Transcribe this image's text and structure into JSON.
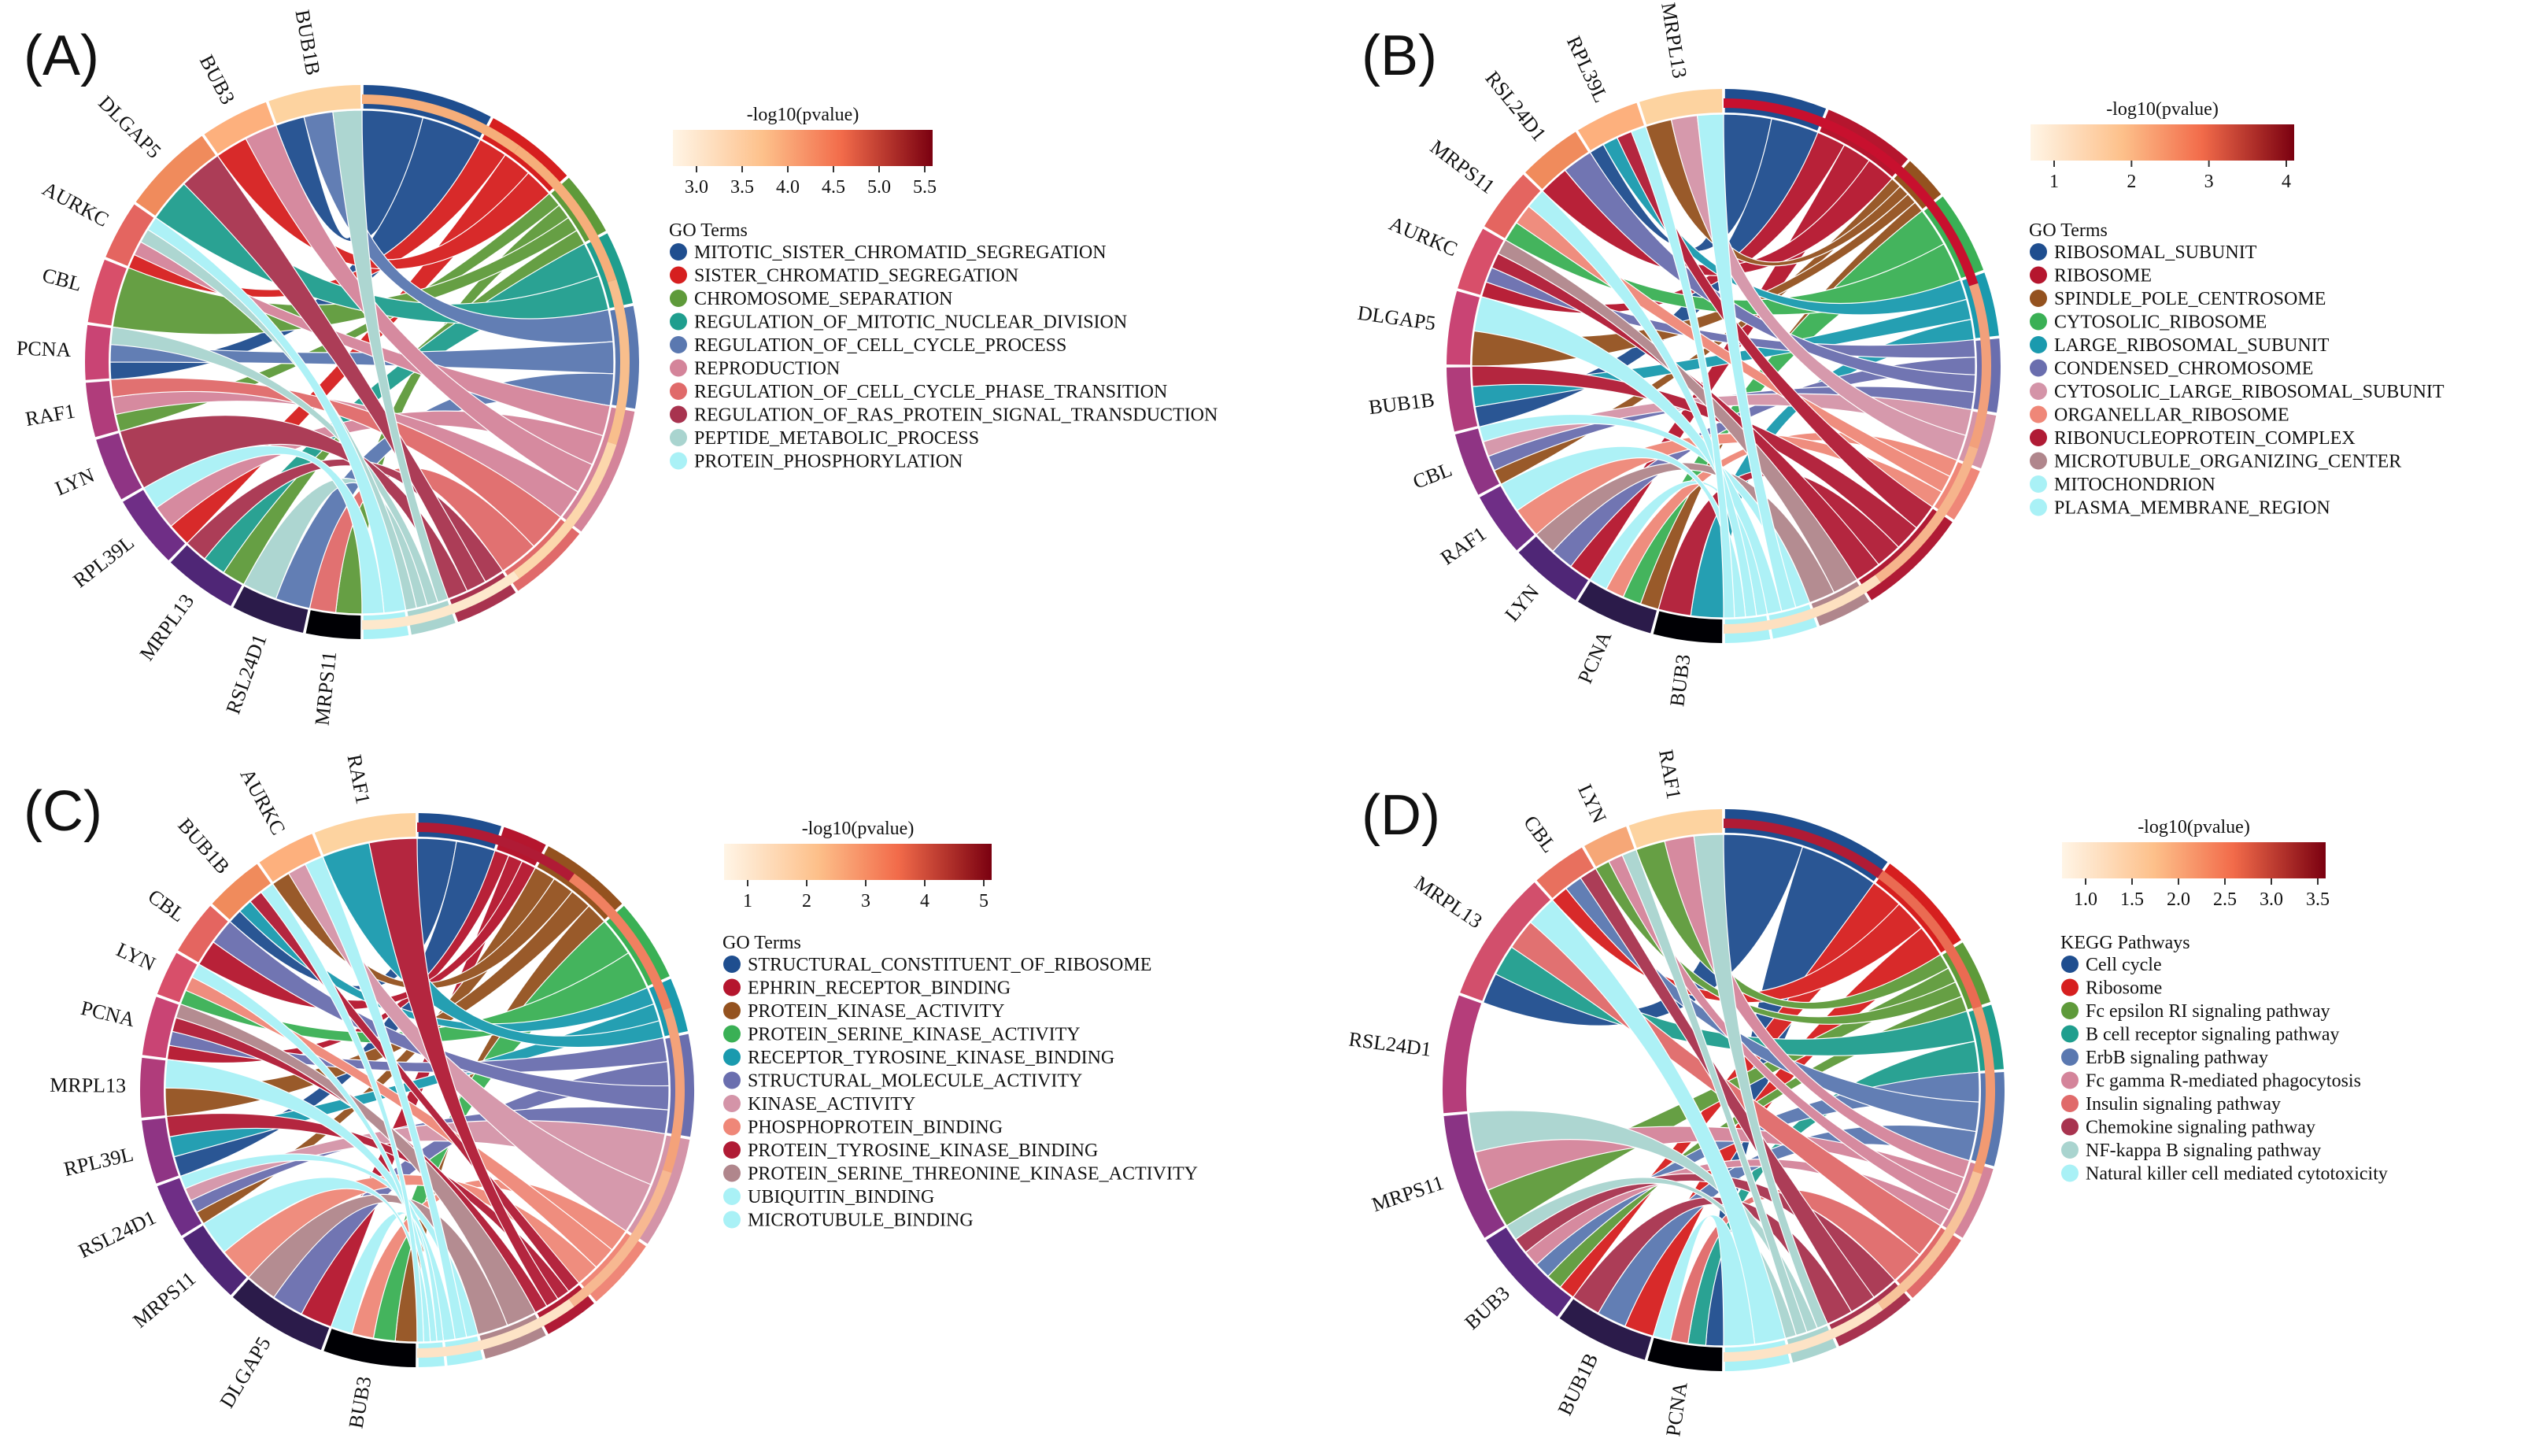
{
  "panels": [
    {
      "label": "(A)",
      "colorbar": {
        "title": "-log10(pvalue)",
        "ticks": [
          "3.0",
          "3.5",
          "4.0",
          "4.5",
          "5.0",
          "5.5"
        ]
      },
      "legend_title": "GO Terms",
      "genes": [
        "BUB1B",
        "BUB3",
        "DLGAP5",
        "AURKC",
        "CBL",
        "PCNA",
        "RAF1",
        "LYN",
        "RPL39L",
        "MRPL13",
        "RSL24D1",
        "MRPS11"
      ],
      "gene_colors": [
        "#fdd3a0",
        "#fdb07d",
        "#f08b5c",
        "#e46560",
        "#d84f6a",
        "#c94474",
        "#b03c7b",
        "#8f3484",
        "#6f2e86",
        "#4f2676",
        "#2b1b4a",
        "#000004"
      ],
      "ring": [
        "#f6ae7a",
        "#f6ae7a",
        "#f8be8c",
        "#fcd7ac",
        "#fde8cc"
      ],
      "terms": [
        {
          "name": "MITOTIC_SISTER_CHROMATID_SEGREGATION",
          "color": "#1f4e8f"
        },
        {
          "name": "SISTER_CHROMATID_SEGREGATION",
          "color": "#d61f1f"
        },
        {
          "name": "CHROMOSOME_SEPARATION",
          "color": "#5e9a3a"
        },
        {
          "name": "REGULATION_OF_MITOTIC_NUCLEAR_DIVISION",
          "color": "#1f9e8e"
        },
        {
          "name": "REGULATION_OF_CELL_CYCLE_PROCESS",
          "color": "#5a78b0"
        },
        {
          "name": "REPRODUCTION",
          "color": "#d4849a"
        },
        {
          "name": "REGULATION_OF_CELL_CYCLE_PHASE_TRANSITION",
          "color": "#e06a6a"
        },
        {
          "name": "REGULATION_OF_RAS_PROTEIN_SIGNAL_TRANSDUCTION",
          "color": "#a8334f"
        },
        {
          "name": "PEPTIDE_METABOLIC_PROCESS",
          "color": "#a9d4cf"
        },
        {
          "name": "PROTEIN_PHOSPHORYLATION",
          "color": "#a9f1f6"
        }
      ]
    },
    {
      "label": "(B)",
      "colorbar": {
        "title": "-log10(pvalue)",
        "ticks": [
          "1",
          "2",
          "3",
          "4"
        ]
      },
      "legend_title": "GO Terms",
      "genes": [
        "MRPL13",
        "RPL39L",
        "RSL24D1",
        "MRPS11",
        "AURKC",
        "DLGAP5",
        "BUB1B",
        "CBL",
        "RAF1",
        "LYN",
        "PCNA",
        "BUB3"
      ],
      "gene_colors": [
        "#fdd3a0",
        "#fdb07d",
        "#f08b5c",
        "#e46560",
        "#d84f6a",
        "#c94474",
        "#b03c7b",
        "#8f3484",
        "#6f2e86",
        "#4f2676",
        "#2b1b4a",
        "#000004"
      ],
      "ring": [
        "#c8102e",
        "#c8102e",
        "#f2a07b",
        "#f6b48c",
        "#fde0c0"
      ],
      "terms": [
        {
          "name": "RIBOSOMAL_SUBUNIT",
          "color": "#1f4e8f"
        },
        {
          "name": "RIBOSOME",
          "color": "#b5162e"
        },
        {
          "name": "SPINDLE_POLE_CENTROSOME",
          "color": "#94521f"
        },
        {
          "name": "CYTOSOLIC_RIBOSOME",
          "color": "#3ab055"
        },
        {
          "name": "LARGE_RIBOSOMAL_SUBUNIT",
          "color": "#1a9aae"
        },
        {
          "name": "CONDENSED_CHROMOSOME",
          "color": "#6a6eae"
        },
        {
          "name": "CYTOSOLIC_LARGE_RIBOSOMAL_SUBUNIT",
          "color": "#d494a8"
        },
        {
          "name": "ORGANELLAR_RIBOSOME",
          "color": "#ef8778"
        },
        {
          "name": "RIBONUCLEOPROTEIN_COMPLEX",
          "color": "#b01b35"
        },
        {
          "name": "MICROTUBULE_ORGANIZING_CENTER",
          "color": "#b0868c"
        },
        {
          "name": "MITOCHONDRION",
          "color": "#a9f1f6"
        },
        {
          "name": "PLASMA_MEMBRANE_REGION",
          "color": "#a9f1f6"
        }
      ]
    },
    {
      "label": "(C)",
      "colorbar": {
        "title": "-log10(pvalue)",
        "ticks": [
          "1",
          "2",
          "3",
          "4",
          "5"
        ]
      },
      "legend_title": "GO Terms",
      "genes": [
        "RAF1",
        "AURKC",
        "BUB1B",
        "CBL",
        "LYN",
        "PCNA",
        "MRPL13",
        "RPL39L",
        "RSL24D1",
        "MRPS11",
        "DLGAP5",
        "BUB3"
      ],
      "gene_colors": [
        "#fdd3a0",
        "#fdb07d",
        "#f08b5c",
        "#e46560",
        "#d84f6a",
        "#c94474",
        "#b03c7b",
        "#8f3484",
        "#6f2e86",
        "#4f2676",
        "#2b1b4a",
        "#000004"
      ],
      "ring": [
        "#b01b35",
        "#f08060",
        "#f4a27a",
        "#f7b891",
        "#fde3c6"
      ],
      "terms": [
        {
          "name": "STRUCTURAL_CONSTITUENT_OF_RIBOSOME",
          "color": "#1f4e8f"
        },
        {
          "name": "EPHRIN_RECEPTOR_BINDING",
          "color": "#b5162e"
        },
        {
          "name": "PROTEIN_KINASE_ACTIVITY",
          "color": "#94521f"
        },
        {
          "name": "PROTEIN_SERINE_KINASE_ACTIVITY",
          "color": "#3ab055"
        },
        {
          "name": "RECEPTOR_TYROSINE_KINASE_BINDING",
          "color": "#1a9aae"
        },
        {
          "name": "STRUCTURAL_MOLECULE_ACTIVITY",
          "color": "#6a6eae"
        },
        {
          "name": "KINASE_ACTIVITY",
          "color": "#d494a8"
        },
        {
          "name": "PHOSPHOPROTEIN_BINDING",
          "color": "#ef8778"
        },
        {
          "name": "PROTEIN_TYROSINE_KINASE_BINDING",
          "color": "#b01b35"
        },
        {
          "name": "PROTEIN_SERINE_THREONINE_KINASE_ACTIVITY",
          "color": "#b0868c"
        },
        {
          "name": "UBIQUITIN_BINDING",
          "color": "#a9f1f6"
        },
        {
          "name": "MICROTUBULE_BINDING",
          "color": "#a9f1f6"
        }
      ]
    },
    {
      "label": "(D)",
      "colorbar": {
        "title": "-log10(pvalue)",
        "ticks": [
          "1.0",
          "1.5",
          "2.0",
          "2.5",
          "3.0",
          "3.5"
        ]
      },
      "legend_title": "KEGG Pathways",
      "genes": [
        "RAF1",
        "LYN",
        "CBL",
        "MRPL13",
        "RSL24D1",
        "MRPS11",
        "BUB3",
        "BUB1B",
        "PCNA"
      ],
      "gene_colors": [
        "#fdd3a0",
        "#f6a777",
        "#e8705e",
        "#d24f6c",
        "#b53d7a",
        "#8a3384",
        "#5a2a80",
        "#2b1b4a",
        "#000004"
      ],
      "ring": [
        "#b01b35",
        "#ea6b52",
        "#f29a72",
        "#f7c39a",
        "#fde3c6"
      ],
      "terms": [
        {
          "name": "Cell cycle",
          "color": "#1f4e8f"
        },
        {
          "name": "Ribosome",
          "color": "#d61f1f"
        },
        {
          "name": "Fc epsilon RI signaling pathway",
          "color": "#5e9a3a"
        },
        {
          "name": "B cell receptor signaling pathway",
          "color": "#1f9e8e"
        },
        {
          "name": "ErbB signaling pathway",
          "color": "#5a78b0"
        },
        {
          "name": "Fc gamma R-mediated phagocytosis",
          "color": "#d4849a"
        },
        {
          "name": "Insulin signaling pathway",
          "color": "#e06a6a"
        },
        {
          "name": "Chemokine signaling pathway",
          "color": "#a8334f"
        },
        {
          "name": "NF-kappa B signaling pathway",
          "color": "#a9d4cf"
        },
        {
          "name": "Natural killer cell mediated cytotoxicity",
          "color": "#a9f1f6"
        }
      ]
    }
  ]
}
